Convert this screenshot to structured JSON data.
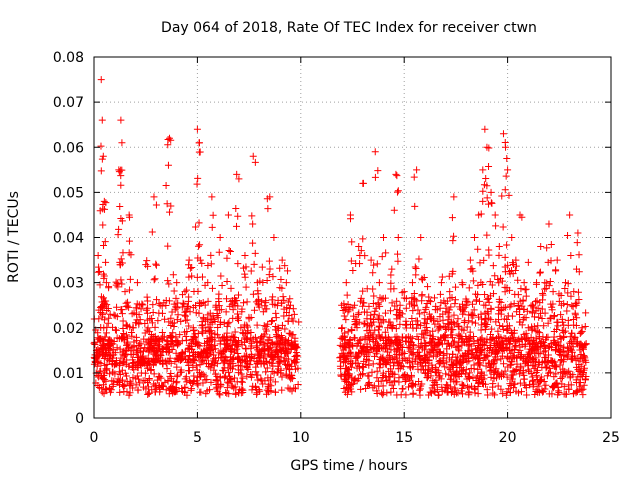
{
  "chart_data": {
    "type": "scatter",
    "title": "Day 064 of 2018, Rate Of TEC Index for receiver ctwn",
    "xlabel": "GPS time / hours",
    "ylabel": "ROTI / TECUs",
    "xlim": [
      0,
      25
    ],
    "ylim": [
      0,
      0.08
    ],
    "x_ticks": [
      "0",
      "5",
      "10",
      "15",
      "20",
      "25"
    ],
    "y_ticks": [
      "0",
      "0.01",
      "0.02",
      "0.03",
      "0.04",
      "0.05",
      "0.06",
      "0.07",
      "0.08"
    ],
    "x_tick_values": [
      0,
      5,
      10,
      15,
      20,
      25
    ],
    "y_tick_values": [
      0,
      0.01,
      0.02,
      0.03,
      0.04,
      0.05,
      0.06,
      0.07,
      0.08
    ],
    "grid": true,
    "marker": "+",
    "series_color": "#ff0000",
    "data_gap": [
      9.9,
      11.9
    ],
    "series": [
      {
        "name": "ROTI",
        "x": [
          0.05,
          0.2,
          0.35,
          0.4,
          0.45,
          0.5,
          0.6,
          0.8,
          1.0,
          1.2,
          1.3,
          1.35,
          1.5,
          1.7,
          1.9,
          2.1,
          2.3,
          2.5,
          2.7,
          2.9,
          3.0,
          3.2,
          3.4,
          3.6,
          3.65,
          3.8,
          4.0,
          4.2,
          4.4,
          4.6,
          4.8,
          5.0,
          5.1,
          5.3,
          5.5,
          5.7,
          5.9,
          6.1,
          6.3,
          6.5,
          6.7,
          6.9,
          7.1,
          7.3,
          7.5,
          7.7,
          7.9,
          8.1,
          8.3,
          8.5,
          8.7,
          8.9,
          9.1,
          9.3,
          9.5,
          9.7,
          12.0,
          12.2,
          12.4,
          12.6,
          12.8,
          13.0,
          13.2,
          13.4,
          13.6,
          13.8,
          14.0,
          14.2,
          14.4,
          14.6,
          14.8,
          15.0,
          15.2,
          15.4,
          15.6,
          15.8,
          16.0,
          16.2,
          16.4,
          16.6,
          16.8,
          17.0,
          17.2,
          17.4,
          17.6,
          17.8,
          18.0,
          18.2,
          18.4,
          18.6,
          18.8,
          18.9,
          19.0,
          19.2,
          19.4,
          19.6,
          19.8,
          19.9,
          20.0,
          20.2,
          20.4,
          20.6,
          20.8,
          21.0,
          21.2,
          21.4,
          21.6,
          21.8,
          22.0,
          22.2,
          22.4,
          22.6,
          22.8,
          23.0,
          23.2,
          23.4,
          23.6
        ],
        "y": [
          0.014,
          0.036,
          0.075,
          0.066,
          0.058,
          0.048,
          0.03,
          0.016,
          0.012,
          0.055,
          0.066,
          0.061,
          0.028,
          0.045,
          0.02,
          0.03,
          0.013,
          0.034,
          0.022,
          0.049,
          0.015,
          0.025,
          0.018,
          0.056,
          0.062,
          0.021,
          0.03,
          0.014,
          0.028,
          0.035,
          0.02,
          0.064,
          0.061,
          0.022,
          0.03,
          0.049,
          0.025,
          0.04,
          0.018,
          0.045,
          0.026,
          0.054,
          0.02,
          0.036,
          0.022,
          0.058,
          0.03,
          0.018,
          0.026,
          0.049,
          0.04,
          0.02,
          0.035,
          0.03,
          0.025,
          0.016,
          0.02,
          0.03,
          0.045,
          0.025,
          0.038,
          0.052,
          0.022,
          0.035,
          0.059,
          0.03,
          0.04,
          0.02,
          0.033,
          0.054,
          0.025,
          0.028,
          0.018,
          0.03,
          0.055,
          0.04,
          0.022,
          0.026,
          0.018,
          0.024,
          0.03,
          0.02,
          0.028,
          0.049,
          0.022,
          0.03,
          0.025,
          0.035,
          0.04,
          0.045,
          0.055,
          0.064,
          0.06,
          0.05,
          0.045,
          0.038,
          0.063,
          0.06,
          0.055,
          0.04,
          0.035,
          0.045,
          0.03,
          0.02,
          0.025,
          0.03,
          0.038,
          0.03,
          0.043,
          0.028,
          0.035,
          0.025,
          0.03,
          0.045,
          0.028,
          0.041,
          0.02
        ]
      }
    ]
  }
}
